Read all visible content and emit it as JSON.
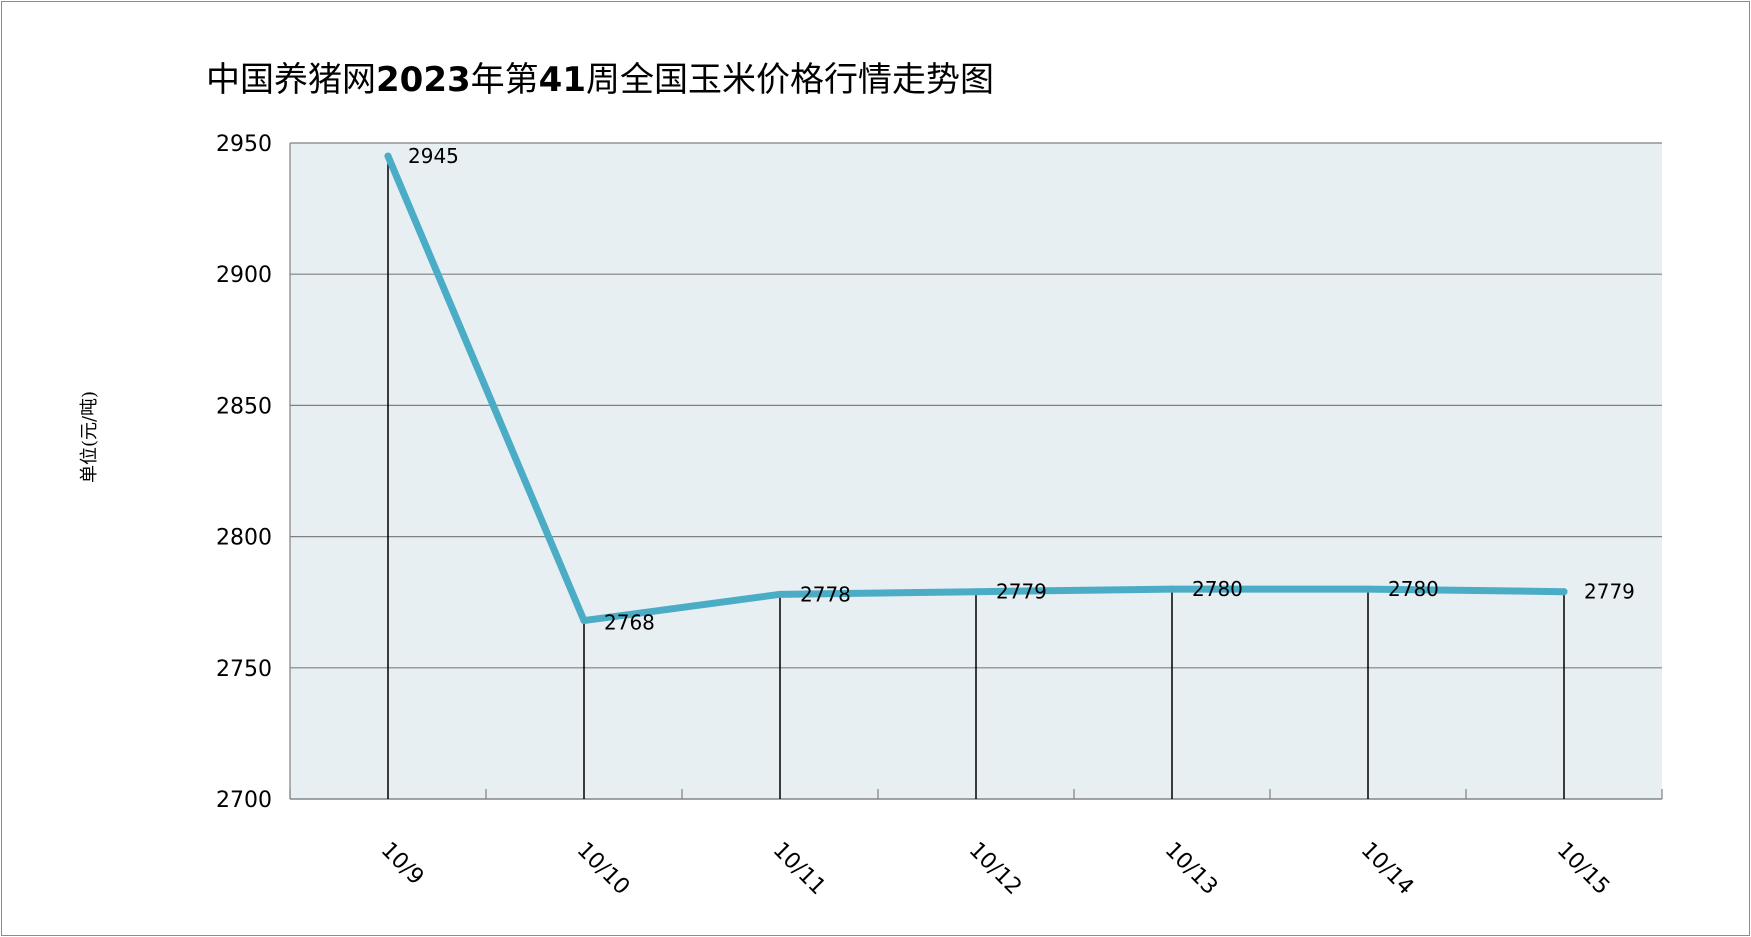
{
  "chart_data": {
    "type": "line",
    "title_parts": [
      {
        "text": "中国养猪网",
        "bold": false
      },
      {
        "text": "2023",
        "bold": true
      },
      {
        "text": "年第",
        "bold": false
      },
      {
        "text": "41",
        "bold": true
      },
      {
        "text": "周全国玉米价格行情走势图",
        "bold": false
      }
    ],
    "ylabel": "单位(元/吨)",
    "categories": [
      "10/9",
      "10/10",
      "10/11",
      "10/12",
      "10/13",
      "10/14",
      "10/15"
    ],
    "values": [
      2945,
      2768,
      2778,
      2779,
      2780,
      2780,
      2779
    ],
    "data_labels": [
      "2945",
      "2768",
      "2778",
      "2779",
      "2780",
      "2780",
      "2779"
    ],
    "ylim": [
      2700,
      2950
    ],
    "yticks": [
      2700,
      2750,
      2800,
      2850,
      2900,
      2950
    ],
    "grid": true,
    "drop_lines": true,
    "colors": {
      "line": "#4bacc6",
      "plot_bg": "#e8eff3",
      "grid": "#808080"
    }
  }
}
